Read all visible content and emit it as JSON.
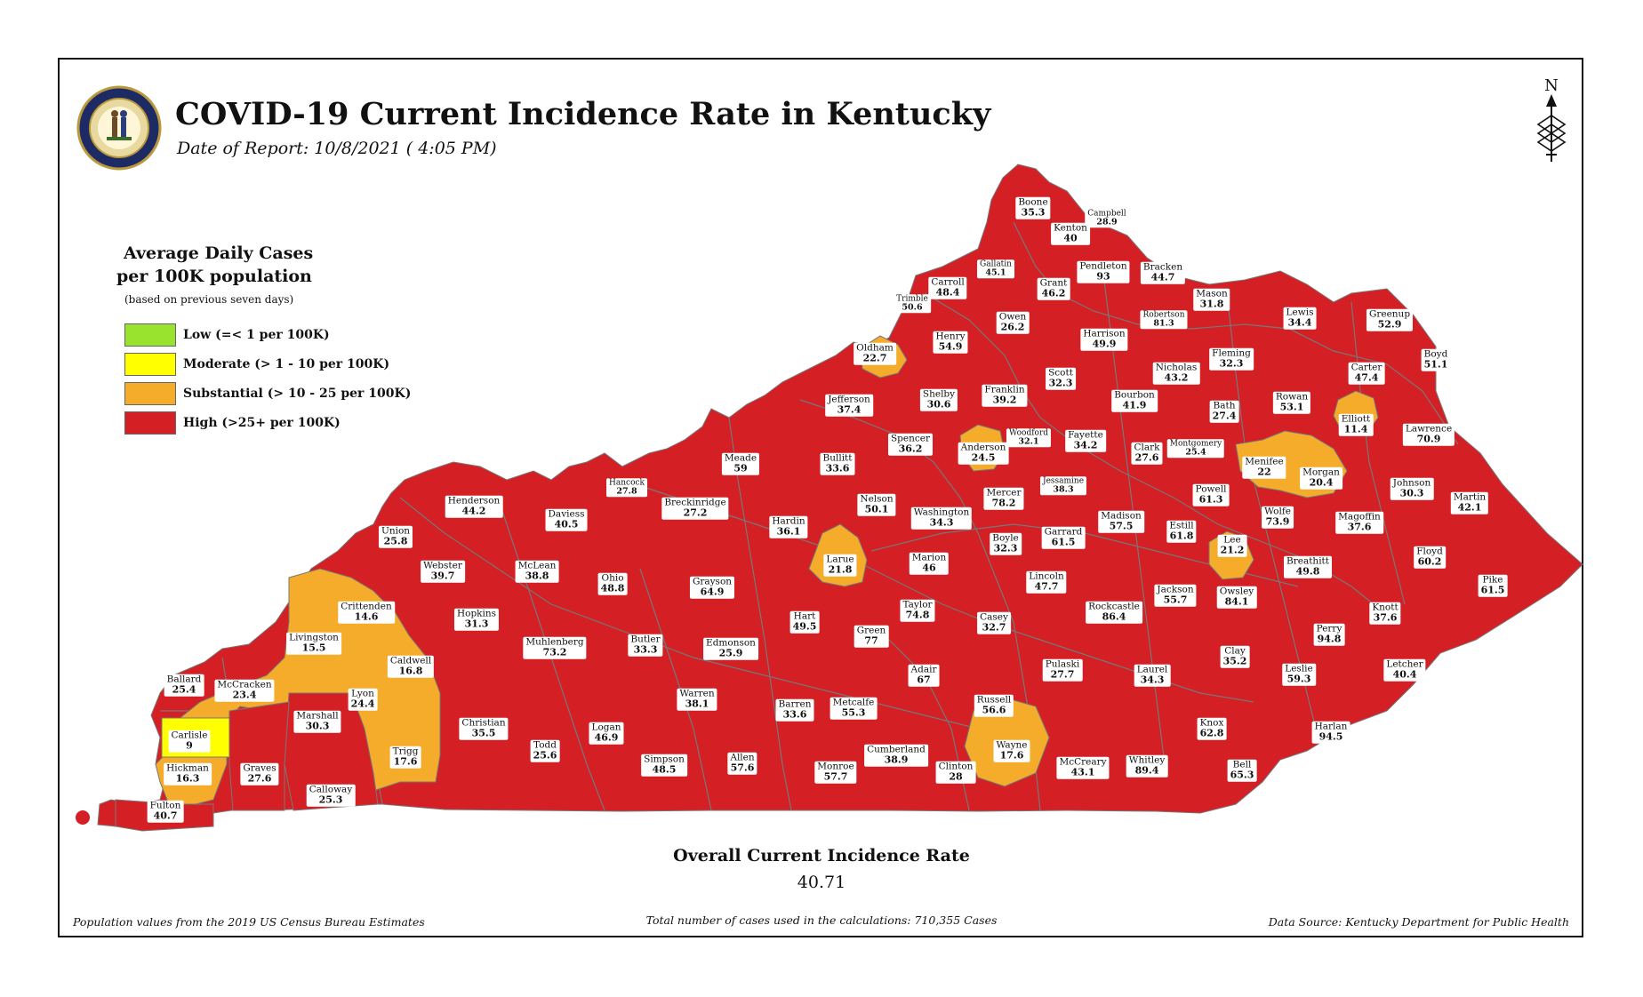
{
  "title": "COVID-19 Current Incidence Rate in Kentucky",
  "subtitle": "Date of Report: 10/8/2021 ( 4:05 PM)",
  "north_label": "N",
  "legend": {
    "title_line1": "Average Daily Cases",
    "title_line2": "per 100K population",
    "note": "(based on previous seven days)",
    "items": [
      {
        "label": "Low (=< 1 per 100K)",
        "color": "#99e22e"
      },
      {
        "label": "Moderate (> 1 - 10 per 100K)",
        "color": "#ffff00"
      },
      {
        "label": "Substantial (> 10 - 25 per 100K)",
        "color": "#f6ac2b"
      },
      {
        "label": "High (>25+ per 100K)",
        "color": "#d42024"
      }
    ]
  },
  "colors": {
    "high": "#d42024",
    "substantial": "#f6ac2b",
    "moderate": "#ffff00",
    "border": "#777777"
  },
  "counties": [
    {
      "name": "Boone",
      "value": "35.3",
      "cat": "high"
    },
    {
      "name": "Campbell",
      "value": "28.9",
      "cat": "high"
    },
    {
      "name": "Kenton",
      "value": "40",
      "cat": "high"
    },
    {
      "name": "Gallatin",
      "value": "45.1",
      "cat": "high"
    },
    {
      "name": "Carroll",
      "value": "48.4",
      "cat": "high"
    },
    {
      "name": "Pendleton",
      "value": "93",
      "cat": "high"
    },
    {
      "name": "Bracken",
      "value": "44.7",
      "cat": "high"
    },
    {
      "name": "Grant",
      "value": "46.2",
      "cat": "high"
    },
    {
      "name": "Trimble",
      "value": "50.6",
      "cat": "high"
    },
    {
      "name": "Mason",
      "value": "31.8",
      "cat": "high"
    },
    {
      "name": "Robertson",
      "value": "81.3",
      "cat": "high"
    },
    {
      "name": "Owen",
      "value": "26.2",
      "cat": "high"
    },
    {
      "name": "Lewis",
      "value": "34.4",
      "cat": "high"
    },
    {
      "name": "Greenup",
      "value": "52.9",
      "cat": "high"
    },
    {
      "name": "Oldham",
      "value": "22.7",
      "cat": "substantial"
    },
    {
      "name": "Henry",
      "value": "54.9",
      "cat": "high"
    },
    {
      "name": "Harrison",
      "value": "49.9",
      "cat": "high"
    },
    {
      "name": "Fleming",
      "value": "32.3",
      "cat": "high"
    },
    {
      "name": "Boyd",
      "value": "51.1",
      "cat": "high"
    },
    {
      "name": "Nicholas",
      "value": "43.2",
      "cat": "high"
    },
    {
      "name": "Carter",
      "value": "47.4",
      "cat": "high"
    },
    {
      "name": "Scott",
      "value": "32.3",
      "cat": "high"
    },
    {
      "name": "Franklin",
      "value": "39.2",
      "cat": "high"
    },
    {
      "name": "Shelby",
      "value": "30.6",
      "cat": "high"
    },
    {
      "name": "Jefferson",
      "value": "37.4",
      "cat": "high"
    },
    {
      "name": "Bourbon",
      "value": "41.9",
      "cat": "high"
    },
    {
      "name": "Rowan",
      "value": "53.1",
      "cat": "high"
    },
    {
      "name": "Bath",
      "value": "27.4",
      "cat": "high"
    },
    {
      "name": "Elliott",
      "value": "11.4",
      "cat": "substantial"
    },
    {
      "name": "Lawrence",
      "value": "70.9",
      "cat": "high"
    },
    {
      "name": "Woodford",
      "value": "32.1",
      "cat": "high"
    },
    {
      "name": "Spencer",
      "value": "36.2",
      "cat": "high"
    },
    {
      "name": "Anderson",
      "value": "24.5",
      "cat": "substantial"
    },
    {
      "name": "Fayette",
      "value": "34.2",
      "cat": "high"
    },
    {
      "name": "Clark",
      "value": "27.6",
      "cat": "high"
    },
    {
      "name": "Montgomery",
      "value": "25.4",
      "cat": "high"
    },
    {
      "name": "Meade",
      "value": "59",
      "cat": "high"
    },
    {
      "name": "Bullitt",
      "value": "33.6",
      "cat": "high"
    },
    {
      "name": "Menifee",
      "value": "22",
      "cat": "substantial"
    },
    {
      "name": "Morgan",
      "value": "20.4",
      "cat": "substantial"
    },
    {
      "name": "Hancock",
      "value": "27.8",
      "cat": "high"
    },
    {
      "name": "Jessamine",
      "value": "38.3",
      "cat": "high"
    },
    {
      "name": "Henderson",
      "value": "44.2",
      "cat": "high"
    },
    {
      "name": "Mercer",
      "value": "78.2",
      "cat": "high"
    },
    {
      "name": "Powell",
      "value": "61.3",
      "cat": "high"
    },
    {
      "name": "Johnson",
      "value": "30.3",
      "cat": "high"
    },
    {
      "name": "Nelson",
      "value": "50.1",
      "cat": "high"
    },
    {
      "name": "Breckinridge",
      "value": "27.2",
      "cat": "high"
    },
    {
      "name": "Martin",
      "value": "42.1",
      "cat": "high"
    },
    {
      "name": "Daviess",
      "value": "40.5",
      "cat": "high"
    },
    {
      "name": "Washington",
      "value": "34.3",
      "cat": "high"
    },
    {
      "name": "Wolfe",
      "value": "73.9",
      "cat": "high"
    },
    {
      "name": "Magoffin",
      "value": "37.6",
      "cat": "high"
    },
    {
      "name": "Madison",
      "value": "57.5",
      "cat": "high"
    },
    {
      "name": "Hardin",
      "value": "36.1",
      "cat": "high"
    },
    {
      "name": "Estill",
      "value": "61.8",
      "cat": "high"
    },
    {
      "name": "Garrard",
      "value": "61.5",
      "cat": "high"
    },
    {
      "name": "Boyle",
      "value": "32.3",
      "cat": "high"
    },
    {
      "name": "Union",
      "value": "25.8",
      "cat": "high"
    },
    {
      "name": "Lee",
      "value": "21.2",
      "cat": "substantial"
    },
    {
      "name": "Floyd",
      "value": "60.2",
      "cat": "high"
    },
    {
      "name": "Webster",
      "value": "39.7",
      "cat": "high"
    },
    {
      "name": "McLean",
      "value": "38.8",
      "cat": "high"
    },
    {
      "name": "Larue",
      "value": "21.8",
      "cat": "substantial"
    },
    {
      "name": "Marion",
      "value": "46",
      "cat": "high"
    },
    {
      "name": "Breathitt",
      "value": "49.8",
      "cat": "high"
    },
    {
      "name": "Ohio",
      "value": "48.8",
      "cat": "high"
    },
    {
      "name": "Lincoln",
      "value": "47.7",
      "cat": "high"
    },
    {
      "name": "Grayson",
      "value": "64.9",
      "cat": "high"
    },
    {
      "name": "Jackson",
      "value": "55.7",
      "cat": "high"
    },
    {
      "name": "Owsley",
      "value": "84.1",
      "cat": "high"
    },
    {
      "name": "Pike",
      "value": "61.5",
      "cat": "high"
    },
    {
      "name": "Crittenden",
      "value": "14.6",
      "cat": "substantial"
    },
    {
      "name": "Rockcastle",
      "value": "86.4",
      "cat": "high"
    },
    {
      "name": "Taylor",
      "value": "74.8",
      "cat": "high"
    },
    {
      "name": "Hopkins",
      "value": "31.3",
      "cat": "high"
    },
    {
      "name": "Casey",
      "value": "32.7",
      "cat": "high"
    },
    {
      "name": "Knott",
      "value": "37.6",
      "cat": "high"
    },
    {
      "name": "Hart",
      "value": "49.5",
      "cat": "high"
    },
    {
      "name": "Perry",
      "value": "94.8",
      "cat": "high"
    },
    {
      "name": "Green",
      "value": "77",
      "cat": "high"
    },
    {
      "name": "Livingston",
      "value": "15.5",
      "cat": "substantial"
    },
    {
      "name": "Butler",
      "value": "33.3",
      "cat": "high"
    },
    {
      "name": "Muhlenberg",
      "value": "73.2",
      "cat": "high"
    },
    {
      "name": "Edmonson",
      "value": "25.9",
      "cat": "high"
    },
    {
      "name": "Clay",
      "value": "35.2",
      "cat": "high"
    },
    {
      "name": "Leslie",
      "value": "59.3",
      "cat": "high"
    },
    {
      "name": "Caldwell",
      "value": "16.8",
      "cat": "substantial"
    },
    {
      "name": "Pulaski",
      "value": "27.7",
      "cat": "high"
    },
    {
      "name": "Laurel",
      "value": "34.3",
      "cat": "high"
    },
    {
      "name": "Letcher",
      "value": "40.4",
      "cat": "high"
    },
    {
      "name": "Adair",
      "value": "67",
      "cat": "high"
    },
    {
      "name": "Ballard",
      "value": "25.4",
      "cat": "high"
    },
    {
      "name": "McCracken",
      "value": "23.4",
      "cat": "substantial"
    },
    {
      "name": "Lyon",
      "value": "24.4",
      "cat": "substantial"
    },
    {
      "name": "Marshall",
      "value": "30.3",
      "cat": "high"
    },
    {
      "name": "Warren",
      "value": "38.1",
      "cat": "high"
    },
    {
      "name": "Russell",
      "value": "56.6",
      "cat": "high"
    },
    {
      "name": "Barren",
      "value": "33.6",
      "cat": "high"
    },
    {
      "name": "Metcalfe",
      "value": "55.3",
      "cat": "high"
    },
    {
      "name": "Christian",
      "value": "35.5",
      "cat": "high"
    },
    {
      "name": "Logan",
      "value": "46.9",
      "cat": "high"
    },
    {
      "name": "Knox",
      "value": "62.8",
      "cat": "high"
    },
    {
      "name": "Carlisle",
      "value": "9",
      "cat": "moderate"
    },
    {
      "name": "Harlan",
      "value": "94.5",
      "cat": "high"
    },
    {
      "name": "Wayne",
      "value": "17.6",
      "cat": "substantial"
    },
    {
      "name": "Trigg",
      "value": "17.6",
      "cat": "substantial"
    },
    {
      "name": "Todd",
      "value": "25.6",
      "cat": "high"
    },
    {
      "name": "Cumberland",
      "value": "38.9",
      "cat": "high"
    },
    {
      "name": "Simpson",
      "value": "48.5",
      "cat": "high"
    },
    {
      "name": "Allen",
      "value": "57.6",
      "cat": "high"
    },
    {
      "name": "Whitley",
      "value": "89.4",
      "cat": "high"
    },
    {
      "name": "Graves",
      "value": "27.6",
      "cat": "high"
    },
    {
      "name": "Monroe",
      "value": "57.7",
      "cat": "high"
    },
    {
      "name": "Clinton",
      "value": "28",
      "cat": "high"
    },
    {
      "name": "McCreary",
      "value": "43.1",
      "cat": "high"
    },
    {
      "name": "Hickman",
      "value": "16.3",
      "cat": "substantial"
    },
    {
      "name": "Calloway",
      "value": "25.3",
      "cat": "high"
    },
    {
      "name": "Bell",
      "value": "65.3",
      "cat": "high"
    },
    {
      "name": "Fulton",
      "value": "40.7",
      "cat": "high"
    }
  ],
  "overall": {
    "label": "Overall Current Incidence Rate",
    "value": "40.71"
  },
  "footer": {
    "left": "Population values from the 2019 US Census Bureau Estimates",
    "middle": "Total number of cases used in the calculations: 710,355 Cases",
    "right": "Data Source: Kentucky Department for Public Health"
  }
}
